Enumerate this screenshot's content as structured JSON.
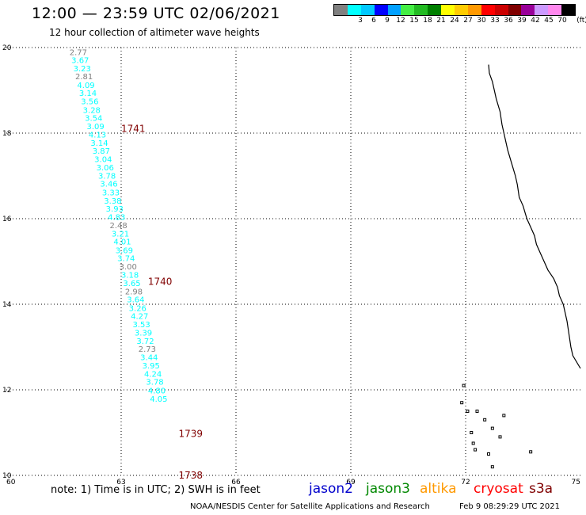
{
  "header": {
    "title": "12:00 — 23:59 UTC 02/06/2021",
    "subtitle": "12 hour collection of altimeter wave heights"
  },
  "legend": {
    "unit": "(ft)",
    "bins": [
      {
        "label": "",
        "color": "#808080"
      },
      {
        "label": "3",
        "color": "#00ffff"
      },
      {
        "label": "6",
        "color": "#00c8ff"
      },
      {
        "label": "9",
        "color": "#0000ff"
      },
      {
        "label": "12",
        "color": "#00a0ff"
      },
      {
        "label": "15",
        "color": "#44ee44"
      },
      {
        "label": "18",
        "color": "#22bb22"
      },
      {
        "label": "21",
        "color": "#007f00"
      },
      {
        "label": "24",
        "color": "#ffff00"
      },
      {
        "label": "27",
        "color": "#ffcc00"
      },
      {
        "label": "30",
        "color": "#ff9900"
      },
      {
        "label": "33",
        "color": "#ff0000"
      },
      {
        "label": "36",
        "color": "#cc0000"
      },
      {
        "label": "39",
        "color": "#800000"
      },
      {
        "label": "42",
        "color": "#990099"
      },
      {
        "label": "45",
        "color": "#cc99ff"
      },
      {
        "label": "70",
        "color": "#ff88ee"
      },
      {
        "label": "",
        "color": "#000000"
      }
    ]
  },
  "axes": {
    "lon_min": 60,
    "lon_max": 75,
    "lat_min": 10,
    "lat_max": 20,
    "lon_ticks": [
      "60",
      "63",
      "66",
      "69",
      "72",
      "75"
    ],
    "lat_ticks": [
      "20",
      "18",
      "16",
      "14",
      "12",
      "10"
    ]
  },
  "pass_labels": [
    {
      "text": "1741",
      "lon": 63.0,
      "lat": 18.12,
      "color": "#800000"
    },
    {
      "text": "1740",
      "lon": 63.7,
      "lat": 14.55,
      "color": "#800000"
    },
    {
      "text": "1739",
      "lon": 64.5,
      "lat": 10.99,
      "color": "#800000"
    },
    {
      "text": "1738",
      "lon": 64.5,
      "lat": 10.02,
      "color": "#800000"
    }
  ],
  "observations": [
    {
      "v": "2.77",
      "lon": 61.65,
      "lat": 19.9,
      "color": "#808080"
    },
    {
      "v": "3.67",
      "lon": 61.7,
      "lat": 19.71,
      "color": "#00ffff"
    },
    {
      "v": "3.23",
      "lon": 61.75,
      "lat": 19.52,
      "color": "#00ffff"
    },
    {
      "v": "2.81",
      "lon": 61.8,
      "lat": 19.33,
      "color": "#808080"
    },
    {
      "v": "4.09",
      "lon": 61.85,
      "lat": 19.13,
      "color": "#00ffff"
    },
    {
      "v": "3.14",
      "lon": 61.9,
      "lat": 18.94,
      "color": "#00ffff"
    },
    {
      "v": "3.56",
      "lon": 61.95,
      "lat": 18.75,
      "color": "#00ffff"
    },
    {
      "v": "3.28",
      "lon": 62.0,
      "lat": 18.55,
      "color": "#00ffff"
    },
    {
      "v": "3.54",
      "lon": 62.05,
      "lat": 18.36,
      "color": "#00ffff"
    },
    {
      "v": "3.09",
      "lon": 62.1,
      "lat": 18.17,
      "color": "#00ffff"
    },
    {
      "v": "4.13",
      "lon": 62.15,
      "lat": 17.97,
      "color": "#00ffff"
    },
    {
      "v": "3.14",
      "lon": 62.2,
      "lat": 17.78,
      "color": "#00ffff"
    },
    {
      "v": "3.87",
      "lon": 62.25,
      "lat": 17.59,
      "color": "#00ffff"
    },
    {
      "v": "3.04",
      "lon": 62.3,
      "lat": 17.4,
      "color": "#00ffff"
    },
    {
      "v": "3.06",
      "lon": 62.35,
      "lat": 17.2,
      "color": "#00ffff"
    },
    {
      "v": "3.78",
      "lon": 62.4,
      "lat": 17.01,
      "color": "#00ffff"
    },
    {
      "v": "3.46",
      "lon": 62.45,
      "lat": 16.82,
      "color": "#00ffff"
    },
    {
      "v": "3.33",
      "lon": 62.5,
      "lat": 16.62,
      "color": "#00ffff"
    },
    {
      "v": "3.38",
      "lon": 62.55,
      "lat": 16.43,
      "color": "#00ffff"
    },
    {
      "v": "3.93",
      "lon": 62.6,
      "lat": 16.24,
      "color": "#00ffff"
    },
    {
      "v": "4.83",
      "lon": 62.65,
      "lat": 16.05,
      "color": "#00ffff"
    },
    {
      "v": "2.48",
      "lon": 62.7,
      "lat": 15.85,
      "color": "#808080"
    },
    {
      "v": "3.21",
      "lon": 62.75,
      "lat": 15.66,
      "color": "#00ffff"
    },
    {
      "v": "4.01",
      "lon": 62.8,
      "lat": 15.47,
      "color": "#00ffff"
    },
    {
      "v": "3.69",
      "lon": 62.85,
      "lat": 15.27,
      "color": "#00ffff"
    },
    {
      "v": "3.74",
      "lon": 62.9,
      "lat": 15.08,
      "color": "#00ffff"
    },
    {
      "v": "3.00",
      "lon": 62.95,
      "lat": 14.89,
      "color": "#808080"
    },
    {
      "v": "3.18",
      "lon": 63.0,
      "lat": 14.69,
      "color": "#00ffff"
    },
    {
      "v": "3.65",
      "lon": 63.05,
      "lat": 14.5,
      "color": "#00ffff"
    },
    {
      "v": "2.98",
      "lon": 63.1,
      "lat": 14.31,
      "color": "#808080"
    },
    {
      "v": "3.64",
      "lon": 63.15,
      "lat": 14.12,
      "color": "#00ffff"
    },
    {
      "v": "3.26",
      "lon": 63.2,
      "lat": 13.92,
      "color": "#00ffff"
    },
    {
      "v": "4.27",
      "lon": 63.25,
      "lat": 13.73,
      "color": "#00ffff"
    },
    {
      "v": "3.53",
      "lon": 63.3,
      "lat": 13.54,
      "color": "#00ffff"
    },
    {
      "v": "3.39",
      "lon": 63.35,
      "lat": 13.34,
      "color": "#00ffff"
    },
    {
      "v": "3.72",
      "lon": 63.4,
      "lat": 13.15,
      "color": "#00ffff"
    },
    {
      "v": "2.73",
      "lon": 63.45,
      "lat": 12.96,
      "color": "#808080"
    },
    {
      "v": "3.44",
      "lon": 63.5,
      "lat": 12.77,
      "color": "#00ffff"
    },
    {
      "v": "3.95",
      "lon": 63.55,
      "lat": 12.57,
      "color": "#00ffff"
    },
    {
      "v": "4.24",
      "lon": 63.6,
      "lat": 12.38,
      "color": "#00ffff"
    },
    {
      "v": "3.78",
      "lon": 63.65,
      "lat": 12.19,
      "color": "#00ffff"
    },
    {
      "v": "4.80",
      "lon": 63.7,
      "lat": 11.99,
      "color": "#00ffff"
    },
    {
      "v": "4.05",
      "lon": 63.75,
      "lat": 11.8,
      "color": "#00ffff"
    }
  ],
  "coastline": [
    [
      72.6,
      19.6
    ],
    [
      72.62,
      19.4
    ],
    [
      72.7,
      19.2
    ],
    [
      72.75,
      19.0
    ],
    [
      72.8,
      18.8
    ],
    [
      72.9,
      18.5
    ],
    [
      72.95,
      18.2
    ],
    [
      73.0,
      18.0
    ],
    [
      73.05,
      17.8
    ],
    [
      73.1,
      17.6
    ],
    [
      73.2,
      17.3
    ],
    [
      73.3,
      17.0
    ],
    [
      73.35,
      16.8
    ],
    [
      73.4,
      16.5
    ],
    [
      73.5,
      16.3
    ],
    [
      73.6,
      16.0
    ],
    [
      73.7,
      15.8
    ],
    [
      73.8,
      15.6
    ],
    [
      73.85,
      15.4
    ],
    [
      73.95,
      15.2
    ],
    [
      74.05,
      15.0
    ],
    [
      74.15,
      14.8
    ],
    [
      74.3,
      14.6
    ],
    [
      74.4,
      14.4
    ],
    [
      74.45,
      14.2
    ],
    [
      74.55,
      14.0
    ],
    [
      74.6,
      13.8
    ],
    [
      74.65,
      13.6
    ],
    [
      74.7,
      13.3
    ],
    [
      74.75,
      13.0
    ],
    [
      74.8,
      12.8
    ],
    [
      75.0,
      12.5
    ]
  ],
  "islands": [
    [
      71.95,
      12.1
    ],
    [
      71.9,
      11.7
    ],
    [
      72.05,
      11.5
    ],
    [
      72.3,
      11.5
    ],
    [
      72.5,
      11.3
    ],
    [
      73.0,
      11.4
    ],
    [
      72.15,
      11.0
    ],
    [
      72.7,
      11.1
    ],
    [
      72.2,
      10.75
    ],
    [
      72.9,
      10.9
    ],
    [
      72.25,
      10.6
    ],
    [
      72.6,
      10.5
    ],
    [
      73.7,
      10.55
    ],
    [
      72.7,
      10.2
    ]
  ],
  "footer": {
    "note": "note: 1) Time is in UTC; 2) SWH is in feet",
    "satellites": [
      {
        "name": "jason2",
        "color": "#0000cc"
      },
      {
        "name": "jason3",
        "color": "#008800"
      },
      {
        "name": "altika",
        "color": "#ff9900"
      },
      {
        "name": "cryosat",
        "color": "#ff0000"
      },
      {
        "name": "s3a",
        "color": "#800000"
      }
    ],
    "credit": "NOAA/NESDIS Center for Satellite Applications and Research",
    "timestamp": "Feb  9 08:29:29 UTC 2021"
  }
}
